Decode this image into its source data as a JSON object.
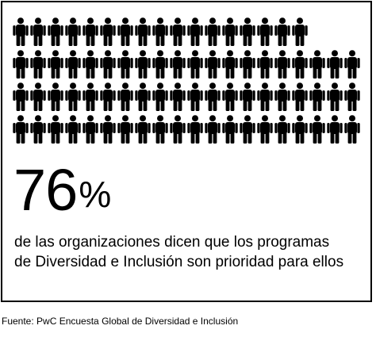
{
  "chart_data": {
    "type": "pictograph",
    "icon": "person-icon",
    "rows": [
      17,
      20,
      20,
      20
    ],
    "value": 76,
    "unit": "%",
    "colors": {
      "icon": "#000000",
      "background": "#ffffff",
      "text": "#000000"
    }
  },
  "stat": {
    "number": "76",
    "unit": "%"
  },
  "description": {
    "line1": "de las organizaciones dicen que los programas",
    "line2": "de Diversidad e Inclusión son prioridad para ellos"
  },
  "source": "Fuente: PwC Encuesta Global de Diversidad e Inclusión"
}
